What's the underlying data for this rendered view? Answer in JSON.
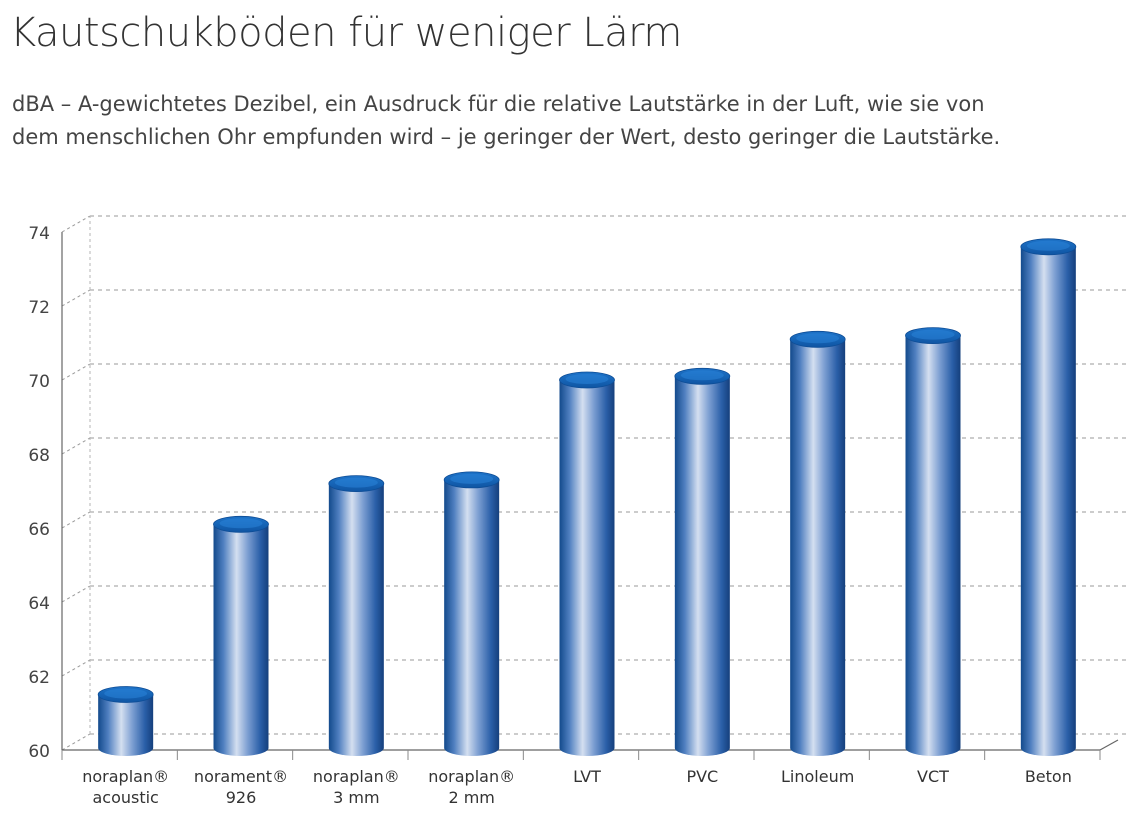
{
  "title": "Kautschukböden für weniger Lärm",
  "subtitle_lines": [
    "dBA – A-gewichtetes Dezibel, ein Ausdruck für die relative Lautstärke in der Luft, wie sie von",
    "dem menschlichen Ohr empfunden wird – je geringer der Wert, desto geringer die Lautstärke."
  ],
  "chart_data": {
    "type": "bar",
    "title": "Kautschukböden für weniger Lärm",
    "xlabel": "",
    "ylabel": "",
    "categories": [
      [
        "noraplan®",
        "acoustic"
      ],
      [
        "norament®",
        "926"
      ],
      [
        "noraplan®",
        "3 mm"
      ],
      [
        "noraplan®",
        "2 mm"
      ],
      [
        "LVT"
      ],
      [
        "PVC"
      ],
      [
        "Linoleum"
      ],
      [
        "VCT"
      ],
      [
        "Beton"
      ]
    ],
    "values": [
      61.5,
      66.1,
      67.2,
      67.3,
      70.0,
      70.1,
      71.1,
      71.2,
      73.6
    ],
    "ylim": [
      60,
      74
    ],
    "yticks": [
      "60",
      "62",
      "64",
      "66",
      "68",
      "70",
      "72",
      "74"
    ],
    "grid": true,
    "grid_style": "dashed",
    "bar_color": "#1f5fa8",
    "bar_highlight": "#c8d6ec",
    "bar_top": "#1a63b3"
  }
}
